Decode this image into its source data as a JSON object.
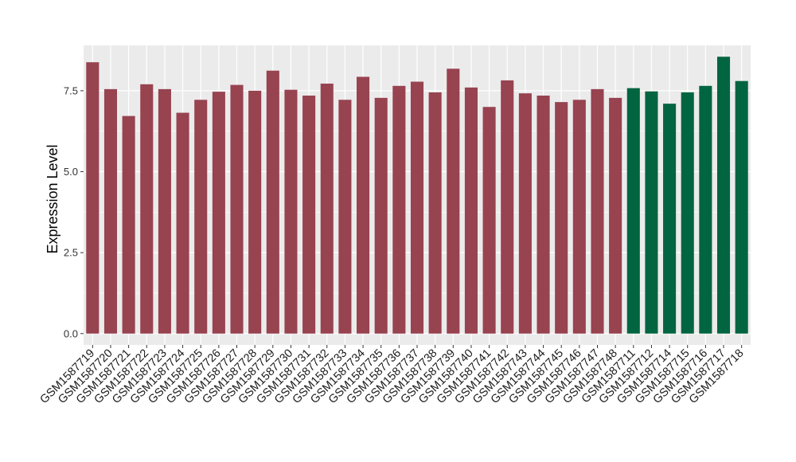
{
  "chart_data": {
    "type": "bar",
    "title": "",
    "xlabel": "",
    "ylabel": "Expression Level",
    "ylim": [
      -0.35,
      8.9
    ],
    "yticks": [
      0.0,
      2.5,
      5.0,
      7.5
    ],
    "ytick_labels": [
      "0.0",
      "2.5",
      "5.0",
      "7.5"
    ],
    "grid": true,
    "legend": "none",
    "panel_color": "#ebebeb",
    "grid_color": "#ffffff",
    "categories": [
      "GSM1587719",
      "GSM1587720",
      "GSM1587721",
      "GSM1587722",
      "GSM1587723",
      "GSM1587724",
      "GSM1587725",
      "GSM1587726",
      "GSM1587727",
      "GSM1587728",
      "GSM1587729",
      "GSM1587730",
      "GSM1587731",
      "GSM1587732",
      "GSM1587733",
      "GSM1587734",
      "GSM1587735",
      "GSM1587736",
      "GSM1587737",
      "GSM1587738",
      "GSM1587739",
      "GSM1587740",
      "GSM1587741",
      "GSM1587742",
      "GSM1587743",
      "GSM1587744",
      "GSM1587745",
      "GSM1587746",
      "GSM1587747",
      "GSM1587748",
      "GSM1587711",
      "GSM1587712",
      "GSM1587714",
      "GSM1587715",
      "GSM1587716",
      "GSM1587717",
      "GSM1587718"
    ],
    "values": [
      8.38,
      7.55,
      6.72,
      7.7,
      7.55,
      6.82,
      7.22,
      7.47,
      7.68,
      7.5,
      8.12,
      7.53,
      7.35,
      7.72,
      7.22,
      7.93,
      7.28,
      7.65,
      7.78,
      7.45,
      8.18,
      7.6,
      7.0,
      7.82,
      7.42,
      7.35,
      7.15,
      7.22,
      7.55,
      7.28,
      7.58,
      7.48,
      7.1,
      7.45,
      7.65,
      8.55,
      7.8
    ],
    "bar_colors": [
      "#984350",
      "#984350",
      "#984350",
      "#984350",
      "#984350",
      "#984350",
      "#984350",
      "#984350",
      "#984350",
      "#984350",
      "#984350",
      "#984350",
      "#984350",
      "#984350",
      "#984350",
      "#984350",
      "#984350",
      "#984350",
      "#984350",
      "#984350",
      "#984350",
      "#984350",
      "#984350",
      "#984350",
      "#984350",
      "#984350",
      "#984350",
      "#984350",
      "#984350",
      "#984350",
      "#026541",
      "#026541",
      "#026541",
      "#026541",
      "#026541",
      "#026541",
      "#026541"
    ]
  }
}
